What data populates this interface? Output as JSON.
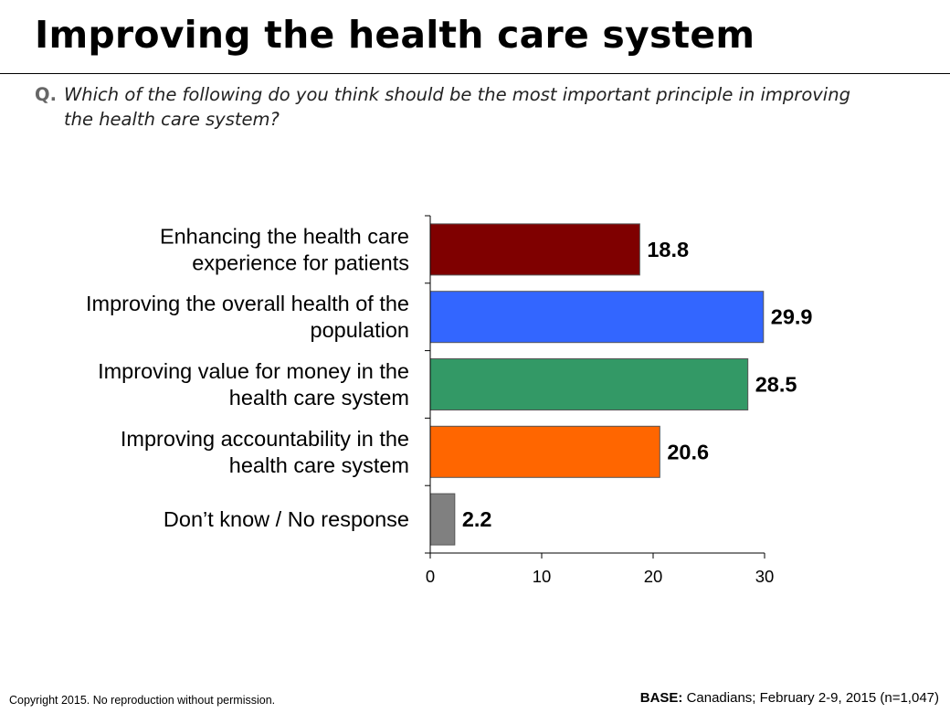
{
  "slide": {
    "title": "Improving the health care system",
    "question_prefix": "Q.",
    "question_text": "Which of the following do you think should be the most important principle in improving the health care system?",
    "copyright": "Copyright 2015. No reproduction without permission.",
    "base_label": "BASE:",
    "base_text": " Canadians; February 2-9, 2015 (n=1,047)"
  },
  "chart_data": {
    "type": "bar",
    "orientation": "horizontal",
    "title": "",
    "xlabel": "",
    "ylabel": "",
    "categories": [
      [
        "Enhancing the health care",
        "experience for patients"
      ],
      [
        "Improving the overall health of the",
        "population"
      ],
      [
        "Improving value for money in the",
        "health care system"
      ],
      [
        "Improving accountability in the",
        "health care system"
      ],
      [
        "Don’t know / No response"
      ]
    ],
    "values": [
      18.8,
      29.9,
      28.5,
      20.6,
      2.2
    ],
    "value_labels": [
      "18.8",
      "29.9",
      "28.5",
      "20.6",
      "2.2"
    ],
    "colors": [
      "#7f0000",
      "#3366ff",
      "#339966",
      "#ff6600",
      "#808080"
    ],
    "xlim": [
      0,
      30
    ],
    "xticks": [
      0,
      10,
      20,
      30
    ],
    "xtick_labels": [
      "0",
      "10",
      "20",
      "30"
    ],
    "grid": false,
    "legend": "none"
  }
}
